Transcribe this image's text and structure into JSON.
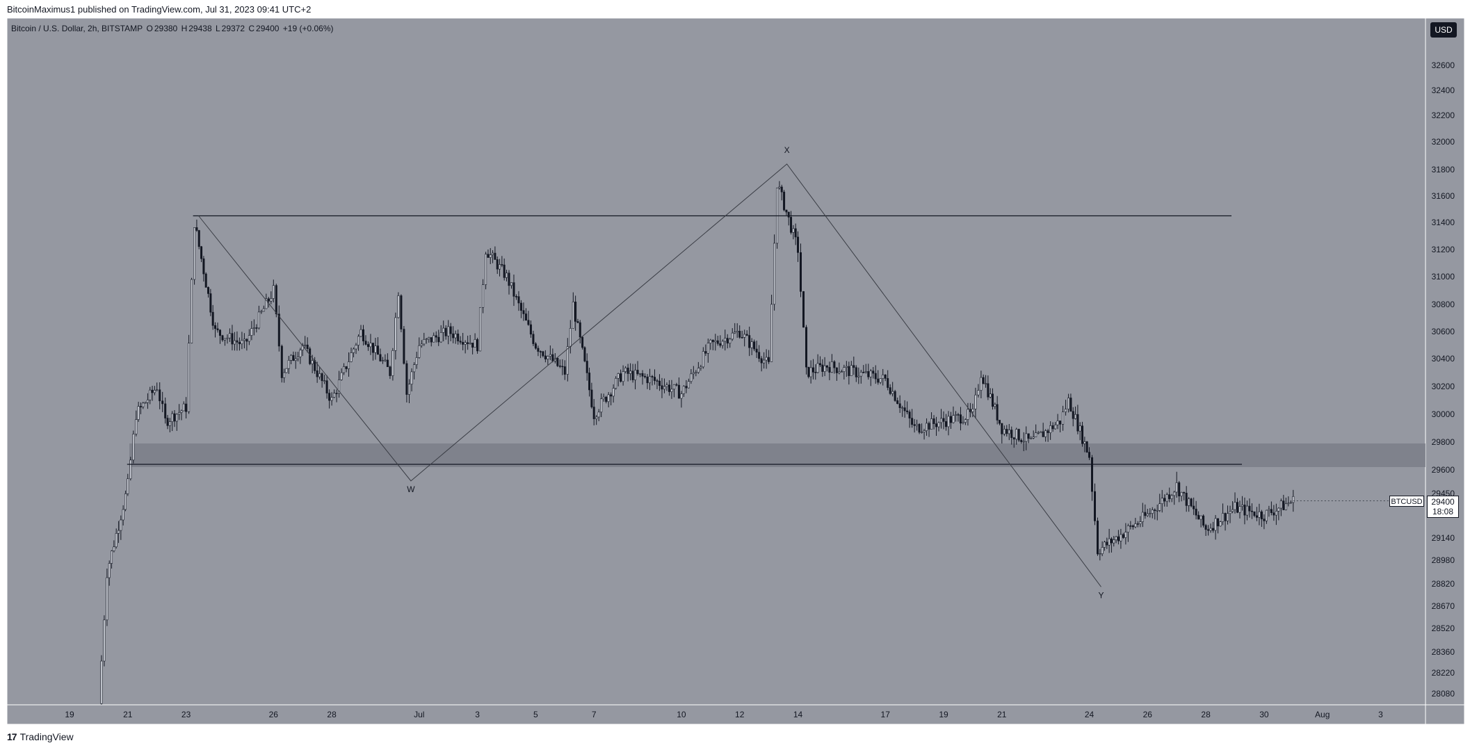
{
  "header": {
    "publisher": "BitcoinMaximus1 published on TradingView.com, Jul 31, 2023 09:41 UTC+2"
  },
  "symbol_line": {
    "name": "Bitcoin / U.S. Dollar, 2h, BITSTAMP",
    "o_label": "O",
    "o_value": "29380",
    "h_label": "H",
    "h_value": "29438",
    "l_label": "L",
    "l_value": "29372",
    "c_label": "C",
    "c_value": "29400",
    "change": "+19 (+0.06%)"
  },
  "currency_button": "USD",
  "last_price": {
    "symbol": "BTCUSD",
    "price": "29400",
    "countdown": "18:08"
  },
  "footer": {
    "logo_mark": "17",
    "brand": "TradingView"
  },
  "colors": {
    "plot_background": "#9598a1",
    "candle": "#131722",
    "support_zone": "#787b86",
    "page": "#ffffff"
  },
  "chart_data": {
    "type": "candlestick",
    "symbol": "BTCUSD",
    "timeframe": "2h",
    "y_range": [
      27990,
      32800
    ],
    "y_ticks": [
      32600,
      32400,
      32200,
      32000,
      31800,
      31600,
      31400,
      31200,
      31000,
      30800,
      30600,
      30400,
      30200,
      30000,
      29800,
      29600,
      29450,
      29140,
      28980,
      28820,
      28670,
      28520,
      28360,
      28220,
      28080
    ],
    "x_axis_labels": [
      {
        "label": "19",
        "date": "2023-06-19"
      },
      {
        "label": "21",
        "date": "2023-06-21"
      },
      {
        "label": "23",
        "date": "2023-06-23"
      },
      {
        "label": "26",
        "date": "2023-06-26"
      },
      {
        "label": "28",
        "date": "2023-06-28"
      },
      {
        "label": "Jul",
        "date": "2023-07-01"
      },
      {
        "label": "3",
        "date": "2023-07-03"
      },
      {
        "label": "5",
        "date": "2023-07-05"
      },
      {
        "label": "7",
        "date": "2023-07-07"
      },
      {
        "label": "10",
        "date": "2023-07-10"
      },
      {
        "label": "12",
        "date": "2023-07-12"
      },
      {
        "label": "14",
        "date": "2023-07-14"
      },
      {
        "label": "17",
        "date": "2023-07-17"
      },
      {
        "label": "19",
        "date": "2023-07-19"
      },
      {
        "label": "21",
        "date": "2023-07-21"
      },
      {
        "label": "24",
        "date": "2023-07-24"
      },
      {
        "label": "26",
        "date": "2023-07-26"
      },
      {
        "label": "28",
        "date": "2023-07-28"
      },
      {
        "label": "30",
        "date": "2023-07-30"
      },
      {
        "label": "Aug",
        "date": "2023-08-01"
      },
      {
        "label": "3",
        "date": "2023-08-03"
      }
    ],
    "price_path": [
      [
        "2023-06-20",
        28000
      ],
      [
        "2023-06-20",
        28900
      ],
      [
        "2023-06-21",
        29500
      ],
      [
        "2023-06-21",
        30000
      ],
      [
        "2023-06-22",
        30200
      ],
      [
        "2023-06-22",
        29950
      ],
      [
        "2023-06-23",
        30050
      ],
      [
        "2023-06-23",
        31400
      ],
      [
        "2023-06-24",
        30600
      ],
      [
        "2023-06-25",
        30500
      ],
      [
        "2023-06-26",
        30900
      ],
      [
        "2023-06-26",
        30300
      ],
      [
        "2023-06-27",
        30500
      ],
      [
        "2023-06-28",
        30100
      ],
      [
        "2023-06-29",
        30600
      ],
      [
        "2023-06-30",
        30300
      ],
      [
        "2023-06-30",
        30900
      ],
      [
        "2023-06-30",
        30150
      ],
      [
        "2023-07-01",
        30500
      ],
      [
        "2023-07-02",
        30600
      ],
      [
        "2023-07-03",
        30500
      ],
      [
        "2023-07-03",
        31200
      ],
      [
        "2023-07-04",
        31000
      ],
      [
        "2023-07-05",
        30500
      ],
      [
        "2023-07-06",
        30300
      ],
      [
        "2023-07-06",
        30800
      ],
      [
        "2023-07-07",
        30000
      ],
      [
        "2023-07-08",
        30300
      ],
      [
        "2023-07-09",
        30250
      ],
      [
        "2023-07-10",
        30150
      ],
      [
        "2023-07-11",
        30500
      ],
      [
        "2023-07-12",
        30600
      ],
      [
        "2023-07-13",
        30350
      ],
      [
        "2023-07-13",
        31700
      ],
      [
        "2023-07-14",
        31200
      ],
      [
        "2023-07-14",
        30300
      ],
      [
        "2023-07-15",
        30350
      ],
      [
        "2023-07-16",
        30300
      ],
      [
        "2023-07-17",
        30250
      ],
      [
        "2023-07-18",
        29900
      ],
      [
        "2023-07-19",
        29950
      ],
      [
        "2023-07-20",
        30000
      ],
      [
        "2023-07-20",
        30300
      ],
      [
        "2023-07-21",
        29900
      ],
      [
        "2023-07-22",
        29800
      ],
      [
        "2023-07-23",
        29950
      ],
      [
        "2023-07-23",
        30100
      ],
      [
        "2023-07-24",
        29700
      ],
      [
        "2023-07-24",
        29050
      ],
      [
        "2023-07-25",
        29150
      ],
      [
        "2023-07-26",
        29300
      ],
      [
        "2023-07-27",
        29500
      ],
      [
        "2023-07-28",
        29200
      ],
      [
        "2023-07-29",
        29350
      ],
      [
        "2023-07-30",
        29300
      ],
      [
        "2023-07-31",
        29400
      ]
    ],
    "last_price": 29400,
    "drawings": {
      "resistance_line": {
        "price": 31450,
        "from": "2023-06-23",
        "to": "2023-07-29"
      },
      "support_line": {
        "price": 29640,
        "from": "2023-06-21",
        "to": "2023-07-29"
      },
      "support_zone": {
        "from_price": 29620,
        "to_price": 29790
      },
      "wxy_wave": [
        {
          "label": "",
          "date": "2023-06-23",
          "price": 31450
        },
        {
          "label": "W",
          "date": "2023-06-30",
          "price": 29530
        },
        {
          "label": "X",
          "date": "2023-07-13",
          "price": 31840
        },
        {
          "label": "Y",
          "date": "2023-07-24",
          "price": 28800
        }
      ]
    }
  }
}
